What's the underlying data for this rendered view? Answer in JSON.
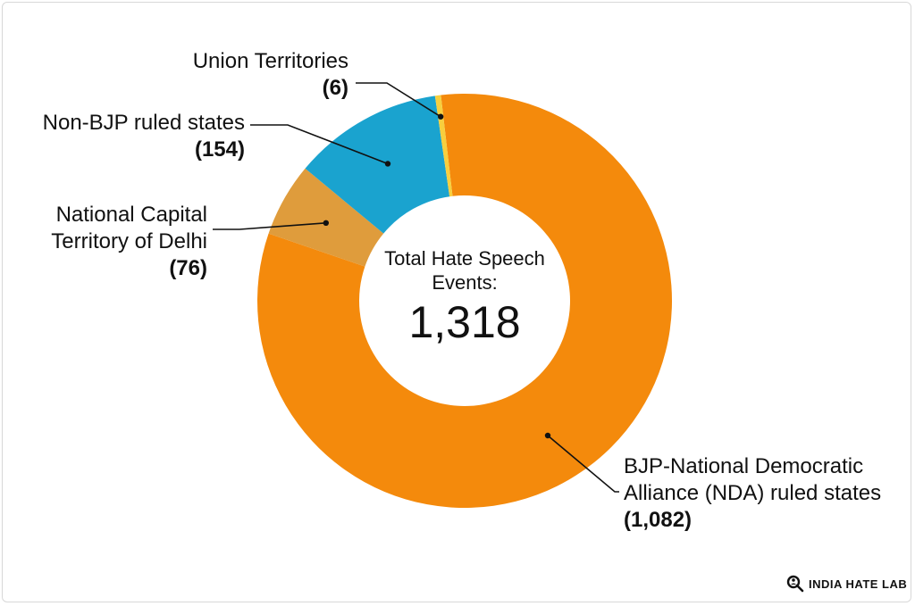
{
  "chart_data": {
    "type": "pie",
    "style": "donut",
    "title": "",
    "center_label": "Total Hate Speech Events:",
    "center_value": "1,318",
    "slices": [
      {
        "label": "BJP-National Democratic Alliance (NDA) ruled states",
        "label_lines": [
          "BJP-National Democratic",
          "Alliance (NDA) ruled states"
        ],
        "value": 1082,
        "value_label": "(1,082)",
        "color": "#f48a0c"
      },
      {
        "label": "National Capital Territory of Delhi",
        "label_lines": [
          "National Capital",
          "Territory of Delhi"
        ],
        "value": 76,
        "value_label": "(76)",
        "color": "#df9c3c"
      },
      {
        "label": "Non-BJP ruled states",
        "label_lines": [
          "Non-BJP ruled states"
        ],
        "value": 154,
        "value_label": "(154)",
        "color": "#1aa3cf"
      },
      {
        "label": "Union Territories",
        "label_lines": [
          "Union Territories"
        ],
        "value": 6,
        "value_label": "(6)",
        "color": "#f7cf3e"
      }
    ]
  },
  "branding": {
    "logo_text": "INDIA HATE LAB",
    "icon": "magnifier-person-icon"
  }
}
